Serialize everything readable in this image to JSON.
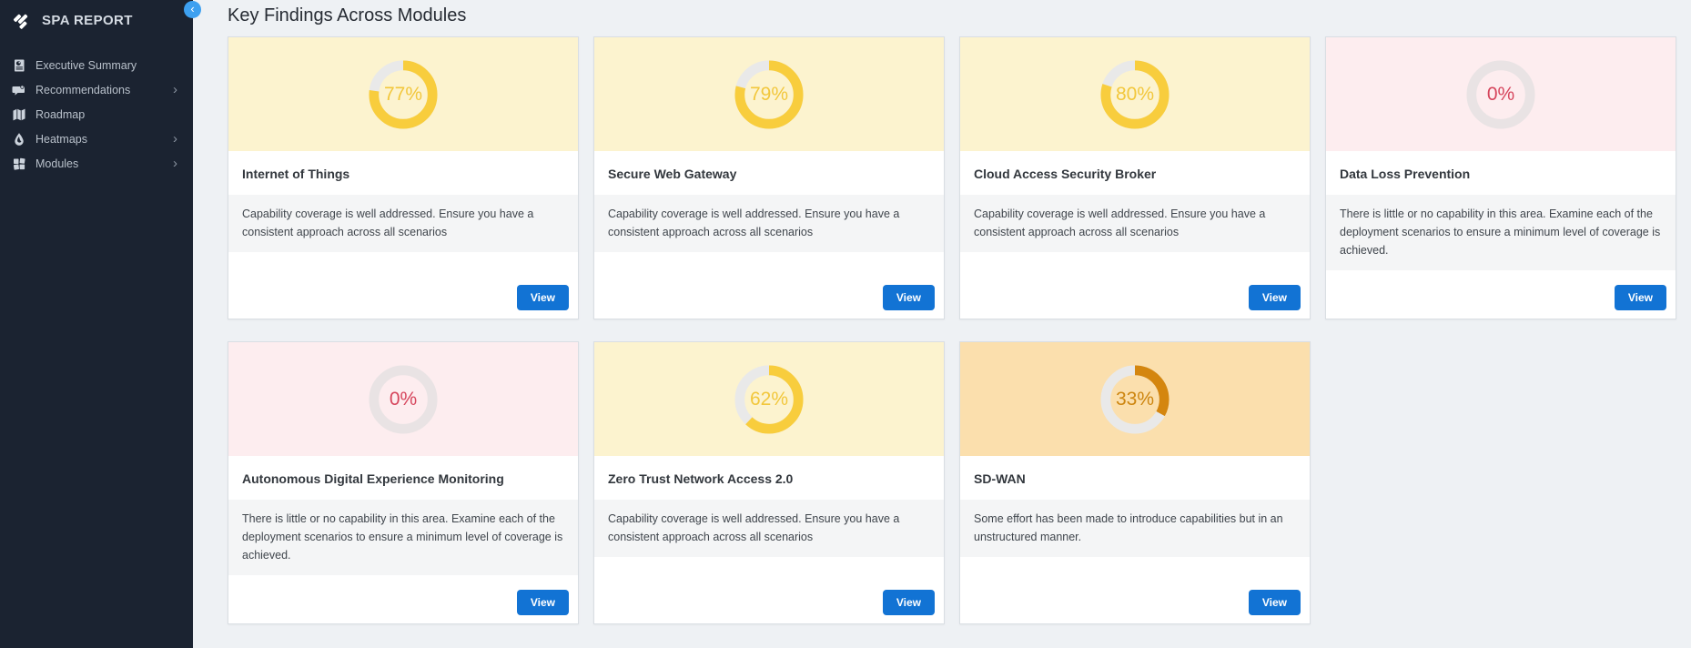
{
  "sidebar": {
    "title": "SPA REPORT",
    "collapse_chevron": "‹",
    "submenu_chevron": "›",
    "items": [
      {
        "label": "Executive Summary",
        "icon": "report-icon",
        "has_submenu": false
      },
      {
        "label": "Recommendations",
        "icon": "megaphone-icon",
        "has_submenu": true
      },
      {
        "label": "Roadmap",
        "icon": "map-icon",
        "has_submenu": false
      },
      {
        "label": "Heatmaps",
        "icon": "flame-icon",
        "has_submenu": true
      },
      {
        "label": "Modules",
        "icon": "modules-icon",
        "has_submenu": true
      }
    ]
  },
  "header": {
    "title": "Key Findings Across Modules"
  },
  "cards": [
    {
      "title": "Internet of Things",
      "percent": 77,
      "percent_label": "77%",
      "status": "good",
      "description": "Capability coverage is well addressed. Ensure you have a consistent approach across all scenarios",
      "view_label": "View"
    },
    {
      "title": "Secure Web Gateway",
      "percent": 79,
      "percent_label": "79%",
      "status": "good",
      "description": "Capability coverage is well addressed. Ensure you have a consistent approach across all scenarios",
      "view_label": "View"
    },
    {
      "title": "Cloud Access Security Broker",
      "percent": 80,
      "percent_label": "80%",
      "status": "good",
      "description": "Capability coverage is well addressed. Ensure you have a consistent approach across all scenarios",
      "view_label": "View"
    },
    {
      "title": "Data Loss Prevention",
      "percent": 0,
      "percent_label": "0%",
      "status": "none",
      "description": "There is little or no capability in this area. Examine each of the deployment scenarios to ensure a minimum level of coverage is achieved.",
      "view_label": "View"
    },
    {
      "title": "Autonomous Digital Experience Monitoring",
      "percent": 0,
      "percent_label": "0%",
      "status": "none",
      "description": "There is little or no capability in this area. Examine each of the deployment scenarios to ensure a minimum level of coverage is achieved.",
      "view_label": "View"
    },
    {
      "title": "Zero Trust Network Access 2.0",
      "percent": 62,
      "percent_label": "62%",
      "status": "good",
      "description": "Capability coverage is well addressed. Ensure you have a consistent approach across all scenarios",
      "view_label": "View"
    },
    {
      "title": "SD-WAN",
      "percent": 33,
      "percent_label": "33%",
      "status": "partial",
      "description": "Some effort has been made to introduce capabilities but in an unstructured manner.",
      "view_label": "View"
    }
  ],
  "colors": {
    "sidebar_bg": "#1b2331",
    "main_bg": "#eef1f4",
    "view_button": "#1273d4",
    "toggle_button": "#3da0f0",
    "status_colors": {
      "good": {
        "header_bg": "#fcf3cf",
        "arc": "#f8cd3d",
        "label": "#f2c73c",
        "track": "#e9e9e9"
      },
      "none": {
        "header_bg": "#fdedef",
        "arc": "#e9e3e4",
        "label": "#d6455c",
        "track": "#e9e3e4"
      },
      "partial": {
        "header_bg": "#fbdfad",
        "arc": "#d4860f",
        "label": "#cd850f",
        "track": "#e9e9e9"
      }
    }
  }
}
